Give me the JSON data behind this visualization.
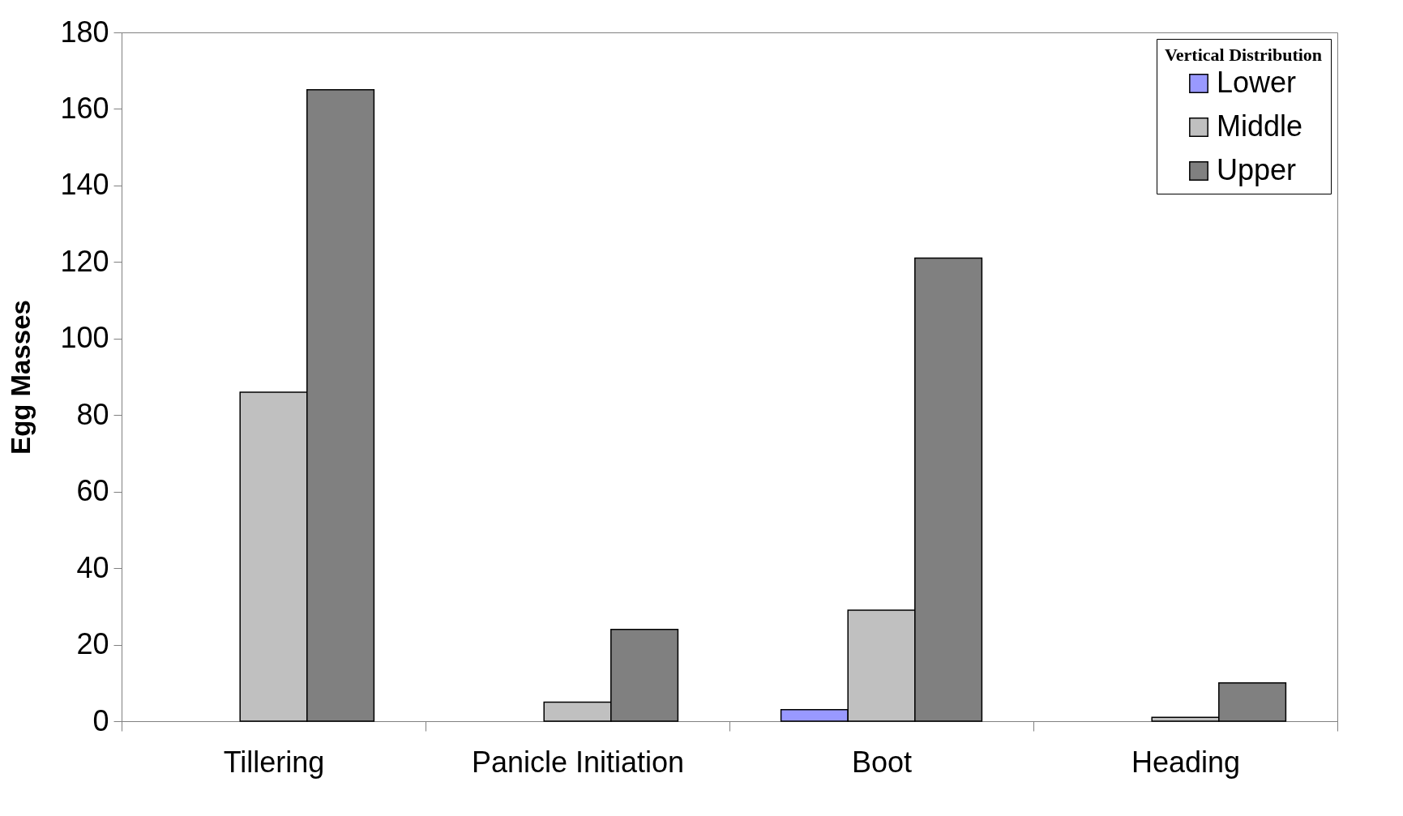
{
  "chart_data": {
    "type": "bar",
    "ylabel": "Egg Masses",
    "legend_title": "Vertical Distribution",
    "categories": [
      "Tillering",
      "Panicle Initiation",
      "Boot",
      "Heading"
    ],
    "series": [
      {
        "name": "Lower",
        "color": "#9999ff",
        "values": [
          null,
          null,
          3,
          null
        ]
      },
      {
        "name": "Middle",
        "color": "#c0c0c0",
        "values": [
          86,
          5,
          29,
          1
        ]
      },
      {
        "name": "Upper",
        "color": "#808080",
        "values": [
          165,
          24,
          121,
          10
        ]
      }
    ],
    "ylim": [
      0,
      180
    ],
    "yticks": [
      0,
      20,
      40,
      60,
      80,
      100,
      120,
      140,
      160,
      180
    ],
    "grid": false,
    "legend": "top right"
  }
}
